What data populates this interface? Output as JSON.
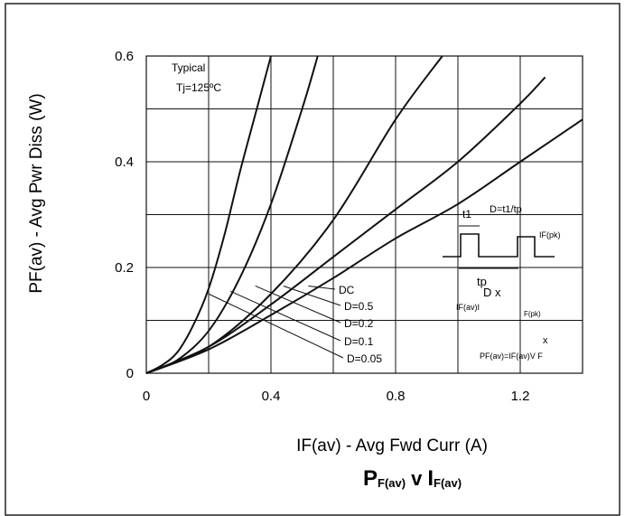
{
  "chart_data": {
    "type": "line",
    "title": "PF(av) v IF(av)",
    "title_parts": {
      "p_big": "P",
      "p_sub": "F(av)",
      "v": "v",
      "i_big": "I",
      "i_sub": "F(av)"
    },
    "xlabel": "IF(av) - Avg Fwd Curr (A)",
    "ylabel": "PF(av) - Avg Pwr Diss (W)",
    "xlim": [
      0,
      1.4
    ],
    "ylim": [
      0,
      0.6
    ],
    "xticks": [
      "0",
      "0.4",
      "0.8",
      "1.2"
    ],
    "yticks": [
      "0",
      "0.2",
      "0.4",
      "0.6"
    ],
    "grid": true,
    "annotations": {
      "typical": "Typical",
      "tj": "Tj=125ºC",
      "waveform_t1": "t1",
      "waveform_duty": "D=t1/tp",
      "waveform_ifpk": "IF(pk)",
      "waveform_tp": "tp",
      "formula_d": "D x",
      "formula_ifav": "IF(av)I",
      "formula_fpk": "F(pk)",
      "formula_x": "x",
      "formula_pf": "PF(av)=IF(av)V F"
    },
    "series": [
      {
        "name": "D=0.05",
        "x": [
          0,
          0.05,
          0.1,
          0.15,
          0.2,
          0.25,
          0.3,
          0.35,
          0.4
        ],
        "y": [
          0,
          0.015,
          0.04,
          0.09,
          0.16,
          0.26,
          0.38,
          0.49,
          0.6
        ]
      },
      {
        "name": "D=0.1",
        "x": [
          0,
          0.1,
          0.2,
          0.3,
          0.4,
          0.5,
          0.55
        ],
        "y": [
          0,
          0.025,
          0.08,
          0.18,
          0.32,
          0.5,
          0.6
        ]
      },
      {
        "name": "D=0.2",
        "x": [
          0,
          0.2,
          0.4,
          0.6,
          0.8,
          0.95
        ],
        "y": [
          0,
          0.05,
          0.15,
          0.29,
          0.48,
          0.6
        ]
      },
      {
        "name": "D=0.5",
        "x": [
          0,
          0.2,
          0.4,
          0.6,
          0.8,
          1.0,
          1.2,
          1.28
        ],
        "y": [
          0,
          0.05,
          0.13,
          0.22,
          0.31,
          0.4,
          0.51,
          0.56
        ]
      },
      {
        "name": "DC",
        "x": [
          0,
          0.2,
          0.4,
          0.6,
          0.8,
          1.0,
          1.2,
          1.4
        ],
        "y": [
          0,
          0.045,
          0.11,
          0.18,
          0.255,
          0.32,
          0.4,
          0.48
        ]
      }
    ]
  }
}
